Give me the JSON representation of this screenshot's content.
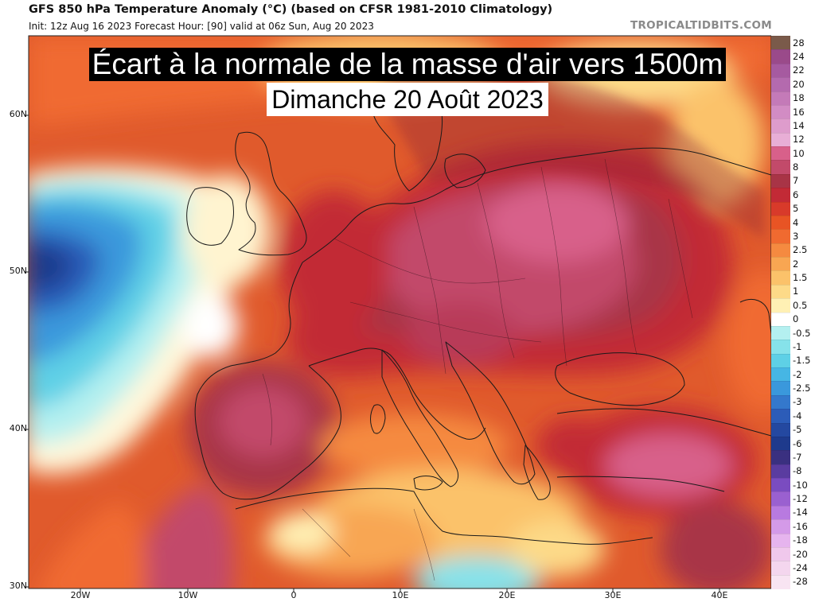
{
  "header": {
    "title": "GFS 850 hPa Temperature Anomaly (°C) (based on CFSR 1981-2010 Climatology)",
    "subtitle": "Init: 12z Aug 16 2023   Forecast Hour: [90]   valid at 06z Sun, Aug 20 2023",
    "brand": "TROPICALTIDBITS.COM"
  },
  "overlay": {
    "line1": "Écart à la normale de la masse d'air vers 1500m",
    "line2": "Dimanche 20 Août 2023"
  },
  "axes": {
    "lat_labels": [
      "60N",
      "50N",
      "40N",
      "30N"
    ],
    "lon_labels": [
      "20W",
      "10W",
      "0",
      "10E",
      "20E",
      "30E",
      "40E"
    ]
  },
  "colorbar": {
    "levels": [
      {
        "label": "28",
        "color": "#7a5a4a"
      },
      {
        "label": "24",
        "color": "#9a4a8a"
      },
      {
        "label": "22",
        "color": "#a65aa0"
      },
      {
        "label": "20",
        "color": "#b46aae"
      },
      {
        "label": "18",
        "color": "#c47ab8"
      },
      {
        "label": "16",
        "color": "#d28cc4"
      },
      {
        "label": "14",
        "color": "#de9ccc"
      },
      {
        "label": "12",
        "color": "#e8aed6"
      },
      {
        "label": "10",
        "color": "#d8608a"
      },
      {
        "label": "8",
        "color": "#c24a6a"
      },
      {
        "label": "7",
        "color": "#a83446"
      },
      {
        "label": "6",
        "color": "#c22a36"
      },
      {
        "label": "5",
        "color": "#d83a2a"
      },
      {
        "label": "4",
        "color": "#e85424"
      },
      {
        "label": "3",
        "color": "#f06a30"
      },
      {
        "label": "2.5",
        "color": "#f58a40"
      },
      {
        "label": "2",
        "color": "#f8a652"
      },
      {
        "label": "1.5",
        "color": "#fbc26a"
      },
      {
        "label": "1",
        "color": "#fdda88"
      },
      {
        "label": "0.5",
        "color": "#fff0b4"
      },
      {
        "label": "0",
        "color": "#ffffff"
      },
      {
        "label": "-0.5",
        "color": "#b4f0f0"
      },
      {
        "label": "-1",
        "color": "#86e2ea"
      },
      {
        "label": "-1.5",
        "color": "#5ed0e6"
      },
      {
        "label": "-2",
        "color": "#46b6e4"
      },
      {
        "label": "-2.5",
        "color": "#3a98dc"
      },
      {
        "label": "-3",
        "color": "#3478cc"
      },
      {
        "label": "-4",
        "color": "#2c5cb8"
      },
      {
        "label": "-5",
        "color": "#2448a0"
      },
      {
        "label": "-6",
        "color": "#1e3a8c"
      },
      {
        "label": "-7",
        "color": "#3a3080"
      },
      {
        "label": "-8",
        "color": "#5a3ca0"
      },
      {
        "label": "-10",
        "color": "#7a4cc0"
      },
      {
        "label": "-12",
        "color": "#9a60d0"
      },
      {
        "label": "-14",
        "color": "#b87ae0"
      },
      {
        "label": "-16",
        "color": "#d49ae8"
      },
      {
        "label": "-18",
        "color": "#e6b4ee"
      },
      {
        "label": "-20",
        "color": "#f0c8ec"
      },
      {
        "label": "-24",
        "color": "#f4d6ee"
      },
      {
        "label": "-28",
        "color": "#f8e4f2"
      }
    ]
  }
}
